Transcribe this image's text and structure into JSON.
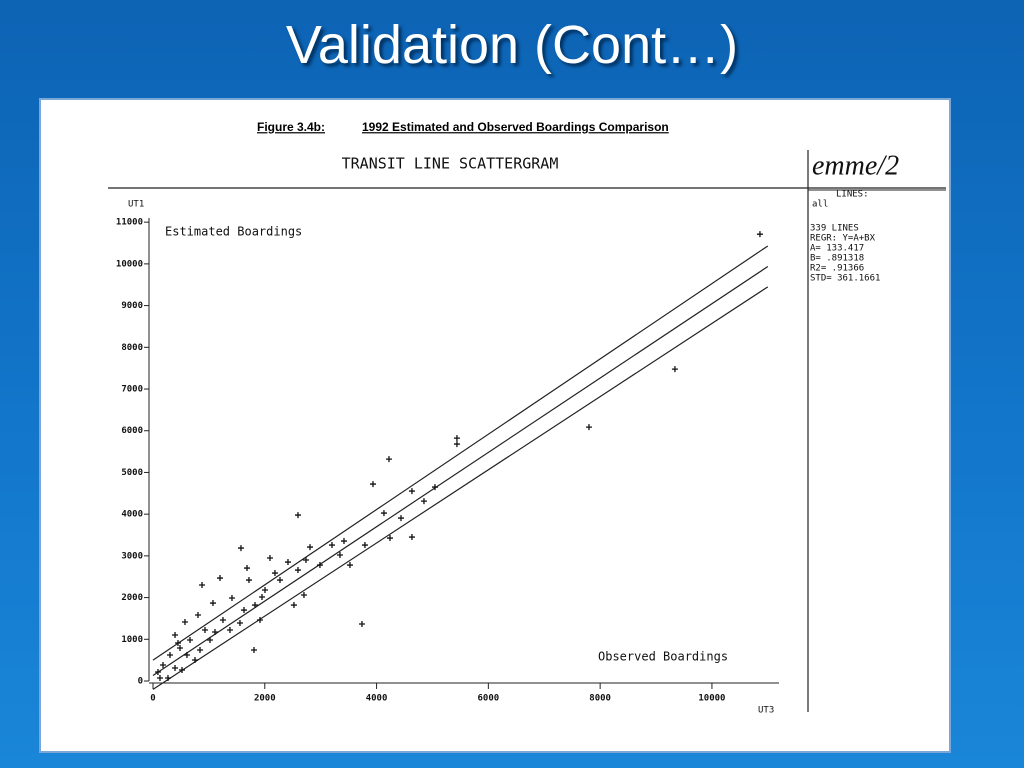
{
  "slide": {
    "title": "Validation (Cont…)"
  },
  "chart_data": {
    "type": "scatter",
    "caption": "Figure 3.4b:",
    "caption_text": "1992 Estimated and Observed Boardings Comparison",
    "title": "TRANSIT LINE SCATTERGRAM",
    "logo": "emme/2",
    "info": [
      "LINES:",
      "all",
      "339 LINES",
      "REGR: Y=A+BX",
      "A=    133.417",
      "B=    .891318",
      "R2=    .91366",
      "STD= 361.1661"
    ],
    "ylabel": "Estimated Boardings",
    "xlabel": "Observed Boardings",
    "y_axis_name": "UT1",
    "x_axis_name": "UT3",
    "color": "#111111",
    "x": [
      10859,
      9338,
      7800,
      5438,
      5438,
      4222,
      3936,
      4633,
      5045,
      4848,
      4132,
      4437,
      4633,
      4240,
      2594,
      3739,
      3792,
      3417,
      3202,
      3524,
      3345,
      2809,
      2737,
      2594,
      2701,
      2522,
      2415,
      2093,
      1574,
      1682,
      1807,
      1717,
      1950,
      1199,
      1073,
      877,
      1413,
      1628,
      1252,
      930,
      662,
      483,
      304,
      179,
      89,
      394,
      572,
      805,
      1020,
      751,
      394,
      268,
      519,
      125,
      841,
      1377,
      1825,
      2004,
      2272,
      2182,
      2987,
      1914,
      1556,
      1109,
      608,
      447
    ],
    "values": [
      10712,
      7477,
      6087,
      5823,
      5680,
      5320,
      4721,
      4553,
      4649,
      4313,
      4026,
      3906,
      3451,
      3427,
      3978,
      1366,
      3259,
      3355,
      3259,
      2780,
      3020,
      3211,
      2900,
      2660,
      2061,
      1821,
      2852,
      2948,
      3187,
      2708,
      743,
      2420,
      2013,
      2468,
      1869,
      2301,
      1989,
      1701,
      1462,
      1222,
      983,
      791,
      623,
      383,
      216,
      1102,
      1414,
      1582,
      983,
      503,
      312,
      72,
      264,
      72,
      743,
      1222,
      1821,
      2181,
      2420,
      2588,
      2780,
      1462,
      1390,
      1174,
      623,
      911
    ],
    "lines": [
      {
        "x": [
          0,
          11000
        ],
        "values": [
          133,
          9937
        ]
      },
      {
        "x": [
          0,
          11000
        ],
        "values": [
          500,
          10430
        ]
      },
      {
        "x": [
          0,
          11000
        ],
        "values": [
          -200,
          9450
        ]
      }
    ],
    "xlim": [
      0,
      11200
    ],
    "ylim": [
      0,
      11100
    ],
    "xticks": [
      0,
      2000,
      4000,
      6000,
      8000,
      10000
    ],
    "yticks": [
      0,
      1000,
      2000,
      3000,
      4000,
      5000,
      6000,
      7000,
      8000,
      9000,
      10000,
      11000
    ]
  }
}
